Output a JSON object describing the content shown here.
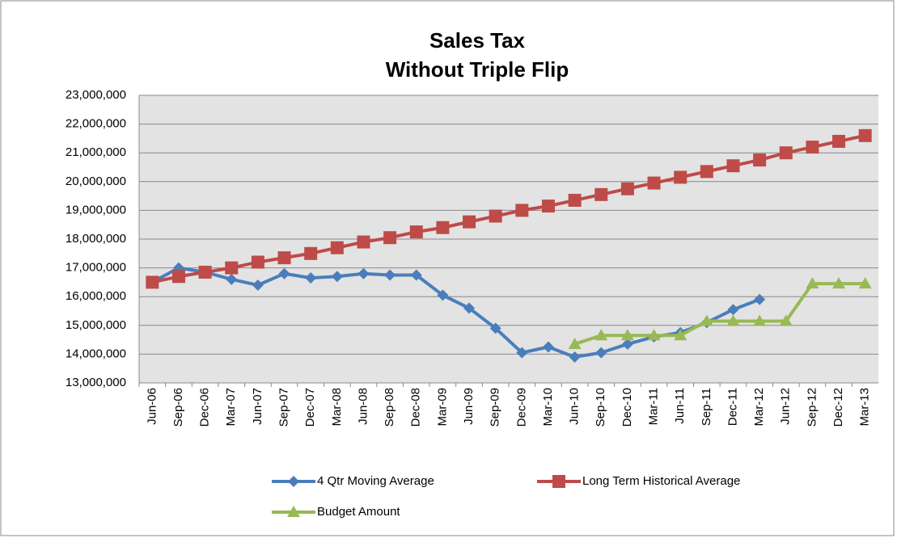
{
  "chart_data": {
    "type": "line",
    "title": [
      "Sales Tax",
      "Without Triple Flip"
    ],
    "categories": [
      "Jun-06",
      "Sep-06",
      "Dec-06",
      "Mar-07",
      "Jun-07",
      "Sep-07",
      "Dec-07",
      "Mar-08",
      "Jun-08",
      "Sep-08",
      "Dec-08",
      "Mar-09",
      "Jun-09",
      "Sep-09",
      "Dec-09",
      "Mar-10",
      "Jun-10",
      "Sep-10",
      "Dec-10",
      "Mar-11",
      "Jun-11",
      "Sep-11",
      "Dec-11",
      "Mar-12",
      "Jun-12",
      "Sep-12",
      "Dec-12",
      "Mar-13"
    ],
    "series": [
      {
        "name": "4 Qtr Moving Average",
        "color": "#4a7ebb",
        "marker": "diamond",
        "values": [
          16500000,
          17000000,
          16850000,
          16600000,
          16400000,
          16800000,
          16650000,
          16700000,
          16800000,
          16750000,
          16750000,
          16050000,
          15600000,
          14900000,
          14050000,
          14250000,
          13900000,
          14050000,
          14350000,
          14600000,
          14750000,
          15100000,
          15550000,
          15900000,
          null,
          null,
          null,
          null
        ]
      },
      {
        "name": "Long Term Historical Average",
        "color": "#be4b48",
        "marker": "square",
        "values": [
          16500000,
          16700000,
          16850000,
          17000000,
          17200000,
          17350000,
          17500000,
          17700000,
          17900000,
          18050000,
          18250000,
          18400000,
          18600000,
          18800000,
          19000000,
          19150000,
          19350000,
          19550000,
          19750000,
          19950000,
          20150000,
          20350000,
          20550000,
          20750000,
          21000000,
          21200000,
          21400000,
          21600000
        ]
      },
      {
        "name": "Budget Amount",
        "color": "#98b954",
        "marker": "triangle",
        "values": [
          null,
          null,
          null,
          null,
          null,
          null,
          null,
          null,
          null,
          null,
          null,
          null,
          null,
          null,
          null,
          null,
          14350000,
          14650000,
          14650000,
          14650000,
          14650000,
          15150000,
          15150000,
          15150000,
          15150000,
          16450000,
          16450000,
          16450000
        ]
      }
    ],
    "ylim": [
      13000000,
      23000000
    ],
    "yticks": [
      {
        "value": 13000000,
        "label": "13,000,000"
      },
      {
        "value": 14000000,
        "label": "14,000,000"
      },
      {
        "value": 15000000,
        "label": "15,000,000"
      },
      {
        "value": 16000000,
        "label": "16,000,000"
      },
      {
        "value": 17000000,
        "label": "17,000,000"
      },
      {
        "value": 18000000,
        "label": "18,000,000"
      },
      {
        "value": 19000000,
        "label": "19,000,000"
      },
      {
        "value": 20000000,
        "label": "20,000,000"
      },
      {
        "value": 21000000,
        "label": "21,000,000"
      },
      {
        "value": 22000000,
        "label": "22,000,000"
      },
      {
        "value": 23000000,
        "label": "23,000,000"
      }
    ],
    "grid": true,
    "legend": "bottom"
  }
}
